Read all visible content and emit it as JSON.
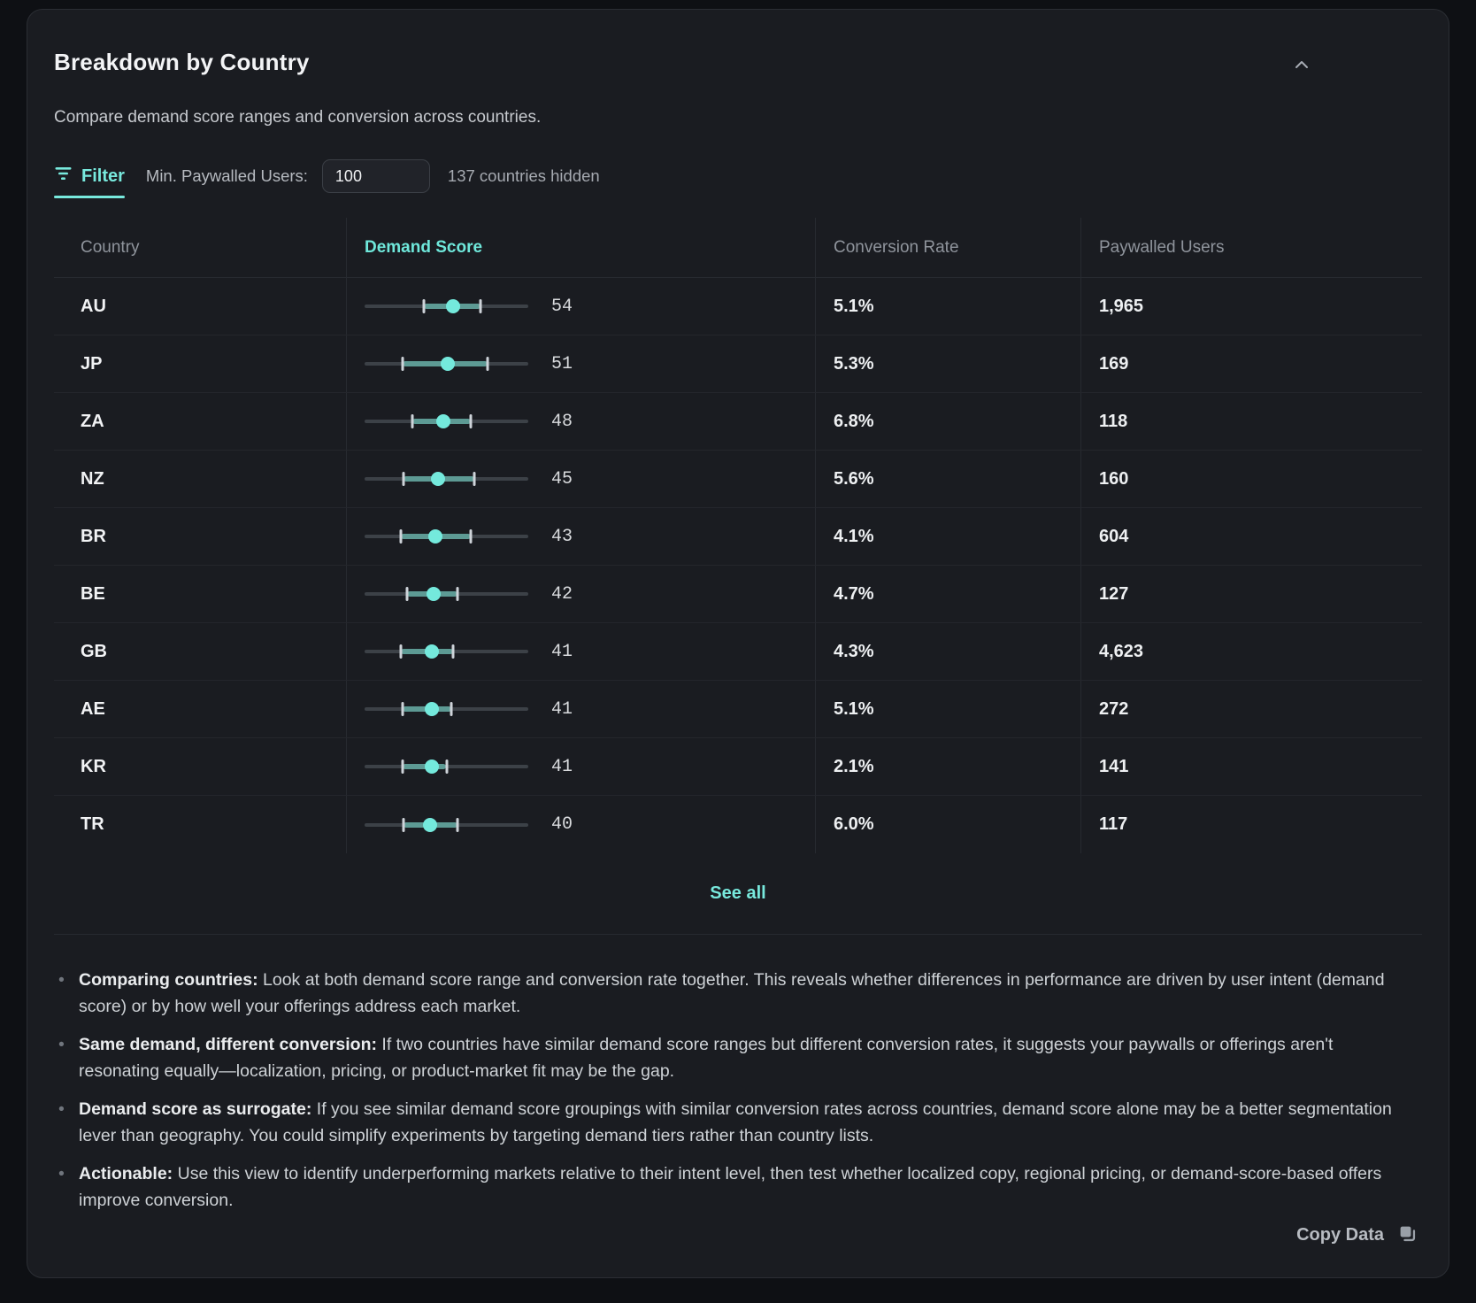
{
  "panel": {
    "title": "Breakdown by Country",
    "subtitle": "Compare demand score ranges and conversion across countries."
  },
  "filter": {
    "tab_label": "Filter",
    "min_label": "Min. Paywalled Users:",
    "input_value": "100",
    "hidden_note": "137 countries hidden"
  },
  "table": {
    "headers": {
      "country": "Country",
      "demand": "Demand Score",
      "conversion": "Conversion Rate",
      "paywalled": "Paywalled Users"
    },
    "scale_min": 0,
    "scale_max": 100,
    "rows": [
      {
        "country": "AU",
        "score": 54,
        "range_min": 36,
        "range_max": 71,
        "conversion": "5.1%",
        "paywalled": "1,965"
      },
      {
        "country": "JP",
        "score": 51,
        "range_min": 23,
        "range_max": 75,
        "conversion": "5.3%",
        "paywalled": "169"
      },
      {
        "country": "ZA",
        "score": 48,
        "range_min": 29,
        "range_max": 65,
        "conversion": "6.8%",
        "paywalled": "118"
      },
      {
        "country": "NZ",
        "score": 45,
        "range_min": 24,
        "range_max": 67,
        "conversion": "5.6%",
        "paywalled": "160"
      },
      {
        "country": "BR",
        "score": 43,
        "range_min": 22,
        "range_max": 65,
        "conversion": "4.1%",
        "paywalled": "604"
      },
      {
        "country": "BE",
        "score": 42,
        "range_min": 26,
        "range_max": 57,
        "conversion": "4.7%",
        "paywalled": "127"
      },
      {
        "country": "GB",
        "score": 41,
        "range_min": 22,
        "range_max": 54,
        "conversion": "4.3%",
        "paywalled": "4,623"
      },
      {
        "country": "AE",
        "score": 41,
        "range_min": 23,
        "range_max": 53,
        "conversion": "5.1%",
        "paywalled": "272"
      },
      {
        "country": "KR",
        "score": 41,
        "range_min": 23,
        "range_max": 50,
        "conversion": "2.1%",
        "paywalled": "141"
      },
      {
        "country": "TR",
        "score": 40,
        "range_min": 24,
        "range_max": 57,
        "conversion": "6.0%",
        "paywalled": "117"
      }
    ],
    "see_all_label": "See all"
  },
  "notes": [
    {
      "lead": "Comparing countries:",
      "text": " Look at both demand score range and conversion rate together. This reveals whether differences in performance are driven by user intent (demand score) or by how well your offerings address each market."
    },
    {
      "lead": "Same demand, different conversion:",
      "text": " If two countries have similar demand score ranges but different conversion rates, it suggests your paywalls or offerings aren't resonating equally—localization, pricing, or product-market fit may be the gap."
    },
    {
      "lead": "Demand score as surrogate:",
      "text": " If you see similar demand score groupings with similar conversion rates across countries, demand score alone may be a better segmentation lever than geography. You could simplify experiments by targeting demand tiers rather than country lists."
    },
    {
      "lead": "Actionable:",
      "text": " Use this view to identify underperforming markets relative to their intent level, then test whether localized copy, regional pricing, or demand-score-based offers improve conversion."
    }
  ],
  "footer": {
    "copy_label": "Copy Data"
  },
  "colors": {
    "accent": "#74e9dc",
    "range_bar": "#5d9a94",
    "track": "#3c4147",
    "whisker": "#ced3d9",
    "card_bg": "#1a1c21",
    "page_bg": "#0e1014"
  }
}
